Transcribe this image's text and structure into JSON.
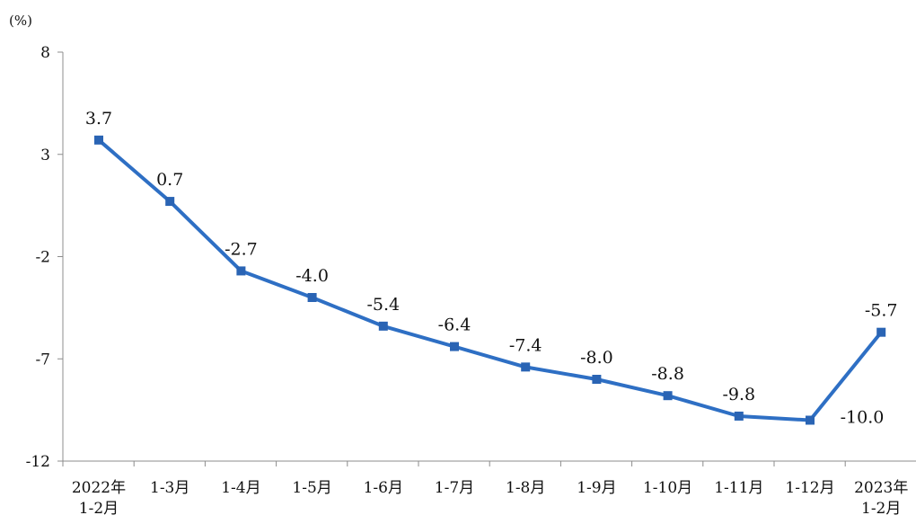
{
  "chart_data": {
    "type": "line",
    "title": "",
    "unit_label": "(%)",
    "xlabel": "",
    "ylabel": "",
    "categories": [
      [
        "2022年",
        "1-2月"
      ],
      [
        "1-3月"
      ],
      [
        "1-4月"
      ],
      [
        "1-5月"
      ],
      [
        "1-6月"
      ],
      [
        "1-7月"
      ],
      [
        "1-8月"
      ],
      [
        "1-9月"
      ],
      [
        "1-10月"
      ],
      [
        "1-11月"
      ],
      [
        "1-12月"
      ],
      [
        "2023年",
        "1-2月"
      ]
    ],
    "values": [
      3.7,
      0.7,
      -2.7,
      -4.0,
      -5.4,
      -6.4,
      -7.4,
      -8.0,
      -8.8,
      -9.8,
      -10.0,
      -5.7
    ],
    "data_labels": [
      "3.7",
      "0.7",
      "-2.7",
      "-4.0",
      "-5.4",
      "-6.4",
      "-7.4",
      "-8.0",
      "-8.8",
      "-9.8",
      "-10.0",
      "-5.7"
    ],
    "ylim": [
      -12,
      8
    ],
    "yticks": [
      8,
      3,
      -2,
      -7,
      -12
    ],
    "ytick_labels": [
      "8",
      "3",
      "-2",
      "-7",
      "-12"
    ],
    "grid": false,
    "legend": "none",
    "line_color": "#2e6fc4",
    "marker_color": "#2a64b4",
    "axis_color": "#8c8c8c"
  }
}
